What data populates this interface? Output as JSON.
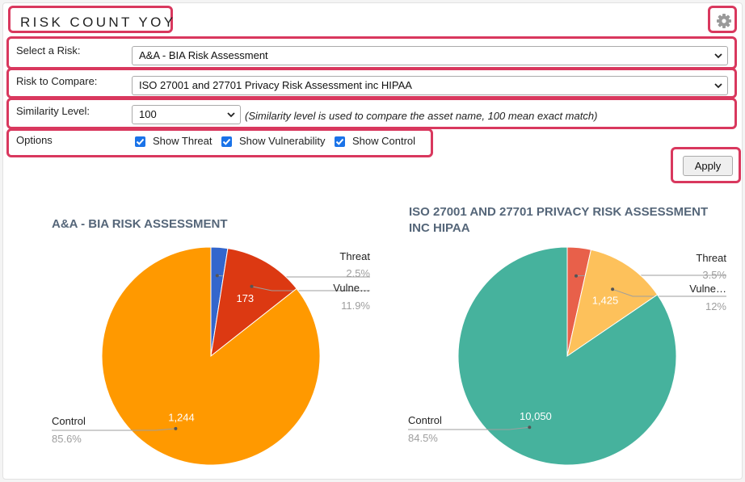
{
  "header": {
    "title": "RISK COUNT YOY",
    "settings_icon": "gear-icon"
  },
  "form": {
    "select_risk_label": "Select a Risk:",
    "select_risk_value": "A&A - BIA Risk Assessment",
    "compare_label": "Risk to Compare:",
    "compare_value": "ISO 27001 and 27701 Privacy Risk Assessment inc HIPAA",
    "similarity_label": "Similarity Level:",
    "similarity_value": "100",
    "similarity_note": "(Similarity level is used to compare the asset name, 100 mean exact match)",
    "options_label": "Options",
    "options": [
      {
        "label": "Show Threat",
        "checked": true
      },
      {
        "label": "Show Vulnerability",
        "checked": true
      },
      {
        "label": "Show Control",
        "checked": true
      }
    ],
    "apply_label": "Apply"
  },
  "colors": {
    "highlight": "#d9385e",
    "checkbox": "#1a73e8"
  },
  "chart_data": [
    {
      "type": "pie",
      "title": "A&A - BIA RISK ASSESSMENT",
      "slices": [
        {
          "name": "Threat",
          "value": 36,
          "pct": "2.5%",
          "color": "#3366cc",
          "value_label": ""
        },
        {
          "name": "Vulne…",
          "value": 173,
          "pct": "11.9%",
          "color": "#dc3912",
          "value_label": "173"
        },
        {
          "name": "Control",
          "value": 1244,
          "pct": "85.6%",
          "color": "#ff9900",
          "value_label": "1,244"
        }
      ]
    },
    {
      "type": "pie",
      "title_line1": "ISO 27001 AND 27701 PRIVACY RISK ASSESSMENT",
      "title_line2": "INC HIPAA",
      "slices": [
        {
          "name": "Threat",
          "value": 416,
          "pct": "3.5%",
          "color": "#e8604a",
          "value_label": ""
        },
        {
          "name": "Vulne…",
          "value": 1425,
          "pct": "12%",
          "color": "#fdc15b",
          "value_label": "1,425"
        },
        {
          "name": "Control",
          "value": 10050,
          "pct": "84.5%",
          "color": "#46b29d",
          "value_label": "10,050"
        }
      ]
    }
  ]
}
